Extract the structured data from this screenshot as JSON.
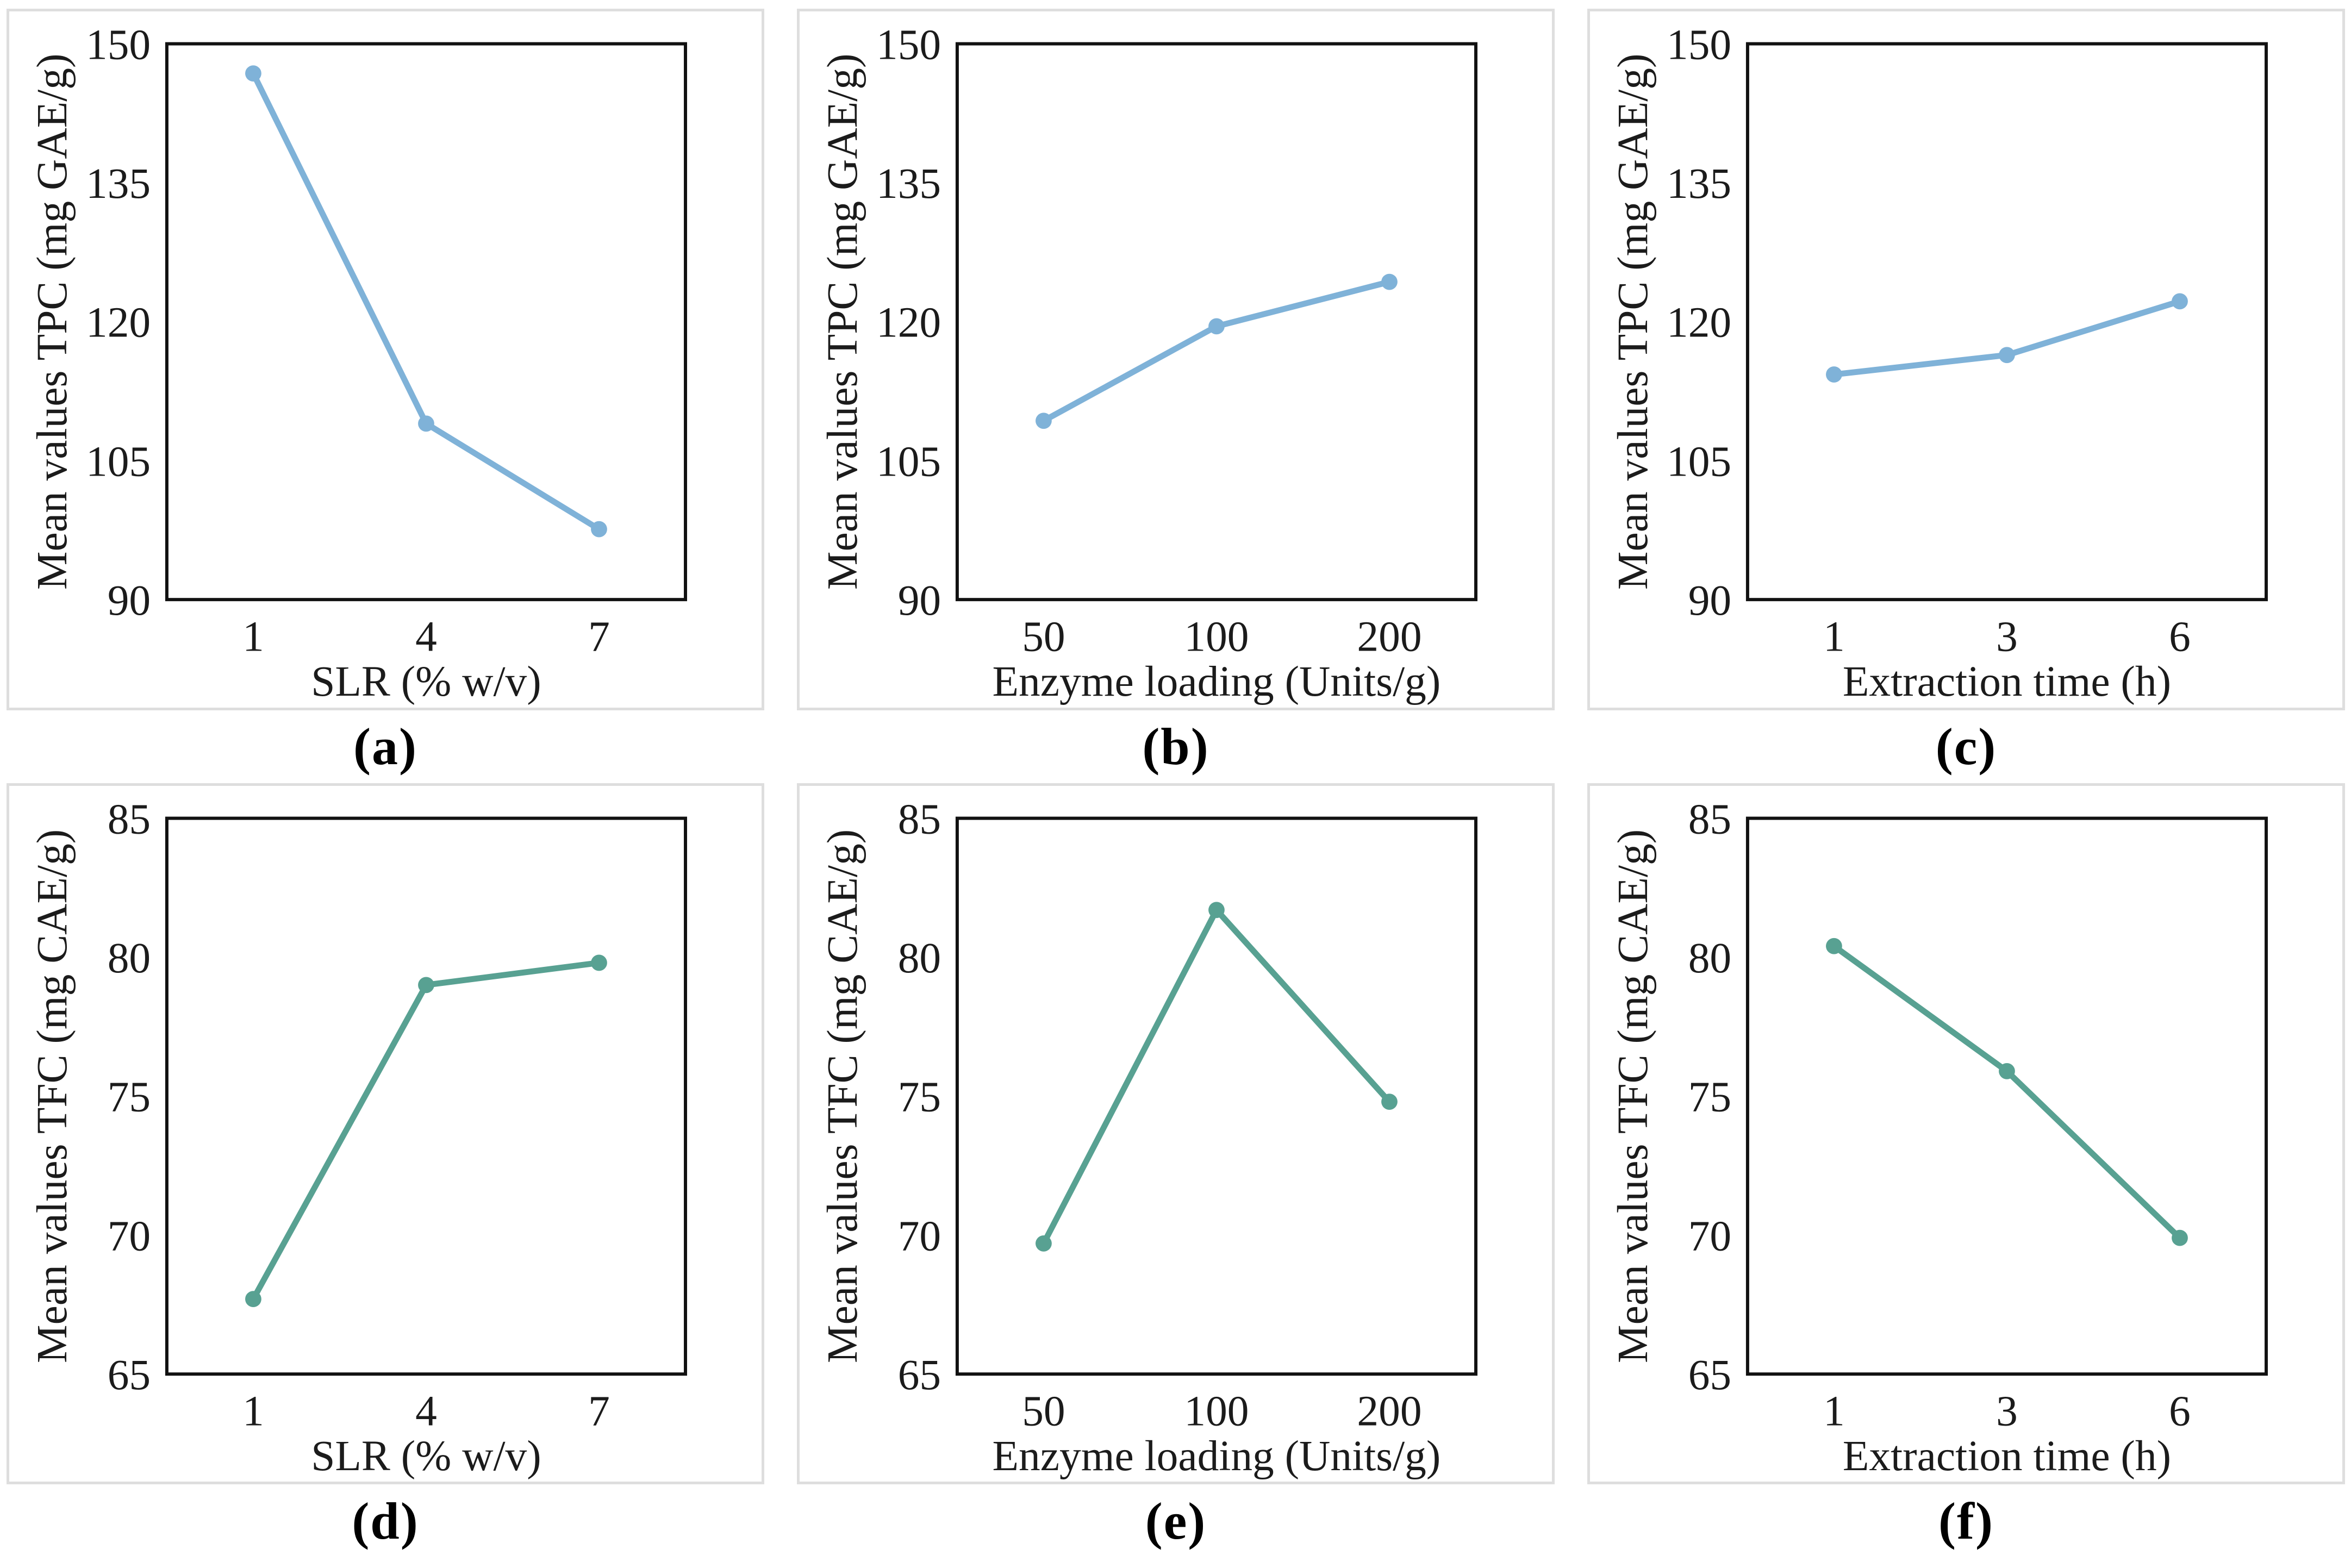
{
  "figure": {
    "background": "#ffffff",
    "panel_border_color": "#dedede",
    "plot_border_color": "#111111",
    "text_color": "#1b1b1b",
    "tpc_line_color": "#7fb2d8",
    "tfc_line_color": "#58a192"
  },
  "chart_data": [
    {
      "type": "line",
      "caption": "(a)",
      "title": "",
      "xlabel": "SLR (% w/v)",
      "ylabel": "Mean values TPC (mg GAE/g)",
      "categories": [
        "1",
        "4",
        "7"
      ],
      "values": [
        146.8,
        109.0,
        97.6
      ],
      "ylim": [
        90,
        150
      ],
      "yticks": [
        90,
        105,
        120,
        135,
        150
      ],
      "grid": false,
      "legend": null,
      "line_color": "#7fb2d8",
      "marker": "circle"
    },
    {
      "type": "line",
      "caption": "(b)",
      "title": "",
      "xlabel": "Enzyme loading (Units/g)",
      "ylabel": "Mean values TPC (mg GAE/g)",
      "categories": [
        "50",
        "100",
        "200"
      ],
      "values": [
        109.3,
        119.5,
        124.3
      ],
      "ylim": [
        90,
        150
      ],
      "yticks": [
        90,
        105,
        120,
        135,
        150
      ],
      "grid": false,
      "legend": null,
      "line_color": "#7fb2d8",
      "marker": "circle"
    },
    {
      "type": "line",
      "caption": "(c)",
      "title": "",
      "xlabel": "Extraction time (h)",
      "ylabel": "Mean values TPC (mg GAE/g)",
      "categories": [
        "1",
        "3",
        "6"
      ],
      "values": [
        114.3,
        116.4,
        122.2
      ],
      "ylim": [
        90,
        150
      ],
      "yticks": [
        90,
        105,
        120,
        135,
        150
      ],
      "grid": false,
      "legend": null,
      "line_color": "#7fb2d8",
      "marker": "circle"
    },
    {
      "type": "line",
      "caption": "(d)",
      "title": "",
      "xlabel": "SLR (% w/v)",
      "ylabel": "Mean values TFC (mg CAE/g)",
      "categories": [
        "1",
        "4",
        "7"
      ],
      "values": [
        67.7,
        79.0,
        79.8
      ],
      "ylim": [
        65,
        85
      ],
      "yticks": [
        65,
        70,
        75,
        80,
        85
      ],
      "grid": false,
      "legend": null,
      "line_color": "#58a192",
      "marker": "circle"
    },
    {
      "type": "line",
      "caption": "(e)",
      "title": "",
      "xlabel": "Enzyme loading (Units/g)",
      "ylabel": "Mean values TFC (mg CAE/g)",
      "categories": [
        "50",
        "100",
        "200"
      ],
      "values": [
        69.7,
        81.7,
        74.8
      ],
      "ylim": [
        65,
        85
      ],
      "yticks": [
        65,
        70,
        75,
        80,
        85
      ],
      "grid": false,
      "legend": null,
      "line_color": "#58a192",
      "marker": "circle"
    },
    {
      "type": "line",
      "caption": "(f)",
      "title": "",
      "xlabel": "Extraction time (h)",
      "ylabel": "Mean values TFC (mg CAE/g)",
      "categories": [
        "1",
        "3",
        "6"
      ],
      "values": [
        80.4,
        75.9,
        69.9
      ],
      "ylim": [
        65,
        85
      ],
      "yticks": [
        65,
        70,
        75,
        80,
        85
      ],
      "grid": false,
      "legend": null,
      "line_color": "#58a192",
      "marker": "circle"
    }
  ]
}
